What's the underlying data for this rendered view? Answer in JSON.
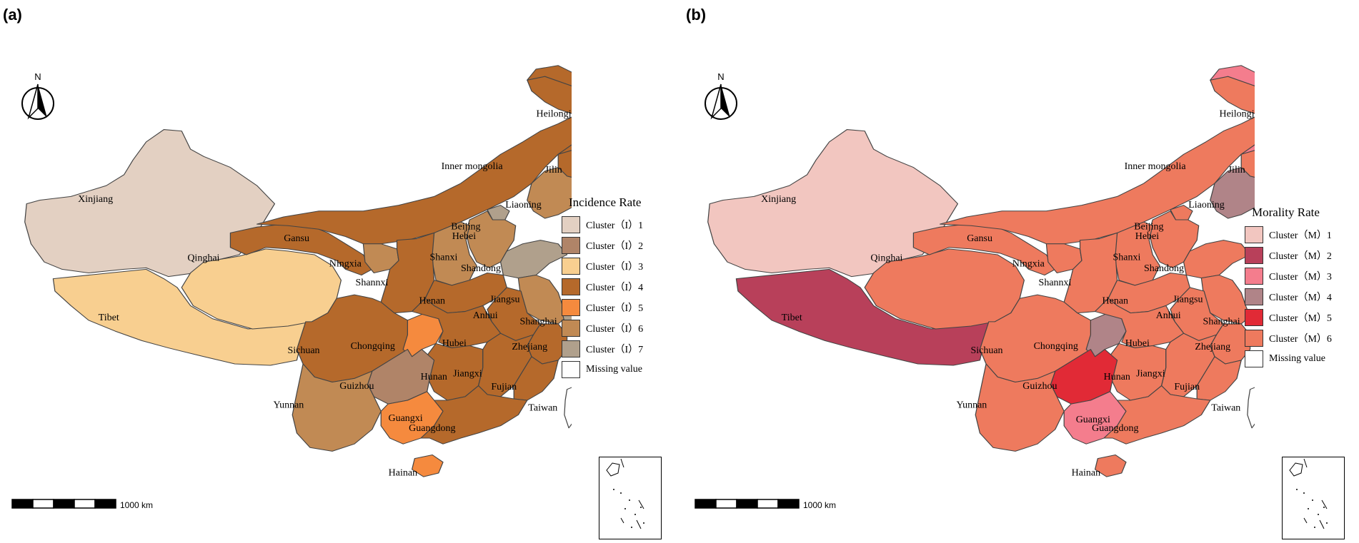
{
  "panels": [
    {
      "label": "(a)",
      "legend_title": "Incidence Rate",
      "legend": [
        {
          "label": "Cluster（I）1",
          "color": "#e3d0c2"
        },
        {
          "label": "Cluster（I）2",
          "color": "#b08468"
        },
        {
          "label": "Cluster（I）3",
          "color": "#f8cf90"
        },
        {
          "label": "Cluster（I）4",
          "color": "#b5692b"
        },
        {
          "label": "Cluster（I）5",
          "color": "#f58a3e"
        },
        {
          "label": "Cluster（I）6",
          "color": "#c18a54"
        },
        {
          "label": "Cluster（I）7",
          "color": "#b0a08c"
        },
        {
          "label": "Missing value",
          "color": "#ffffff"
        }
      ],
      "regions": {
        "Xinjiang": 1,
        "Tibet": 3,
        "Qinghai": 3,
        "Gansu": 4,
        "Inner mongolia": 4,
        "Heilongjiang": 4,
        "Jilin": 4,
        "Liaoning": 6,
        "Beijing": 7,
        "Hebei": 6,
        "Shanxi": 6,
        "Shandong": 7,
        "Ningxia": 6,
        "Shannxi": 4,
        "Henan": 4,
        "Jiangsu": 6,
        "Anhui": 4,
        "Shanghai": 7,
        "Sichuan": 4,
        "Chongqing": 5,
        "Hubei": 4,
        "Zhejiang": 4,
        "Hunan": 4,
        "Jiangxi": 4,
        "Fujian": 4,
        "Guizhou": 2,
        "Yunnan": 6,
        "Guangxi": 5,
        "Guangdong": 4,
        "Hainan": 5,
        "Taiwan": 8
      },
      "scale_label": "1000 km",
      "north": "N"
    },
    {
      "label": "(b)",
      "legend_title": "Morality Rate",
      "legend": [
        {
          "label": "Cluster（M）1",
          "color": "#f2c6c0"
        },
        {
          "label": "Cluster（M）2",
          "color": "#b8405a"
        },
        {
          "label": "Cluster（M）3",
          "color": "#f47d8d"
        },
        {
          "label": "Cluster（M）4",
          "color": "#b08488"
        },
        {
          "label": "Cluster（M）5",
          "color": "#e12a36"
        },
        {
          "label": "Cluster（M）6",
          "color": "#ee7a5e"
        },
        {
          "label": "Missing value",
          "color": "#ffffff"
        }
      ],
      "regions": {
        "Xinjiang": 1,
        "Tibet": 2,
        "Qinghai": 6,
        "Gansu": 6,
        "Inner mongolia": 6,
        "Heilongjiang": 3,
        "Jilin": 6,
        "Liaoning": 4,
        "Beijing": 6,
        "Hebei": 6,
        "Shanxi": 6,
        "Shandong": 6,
        "Ningxia": 6,
        "Shannxi": 6,
        "Henan": 6,
        "Jiangsu": 6,
        "Anhui": 6,
        "Shanghai": 2,
        "Sichuan": 6,
        "Chongqing": 4,
        "Hubei": 6,
        "Zhejiang": 6,
        "Hunan": 6,
        "Jiangxi": 6,
        "Fujian": 6,
        "Guizhou": 5,
        "Yunnan": 6,
        "Guangxi": 3,
        "Guangdong": 6,
        "Hainan": 6,
        "Taiwan": 7
      },
      "scale_label": "1000 km",
      "north": "N"
    }
  ]
}
